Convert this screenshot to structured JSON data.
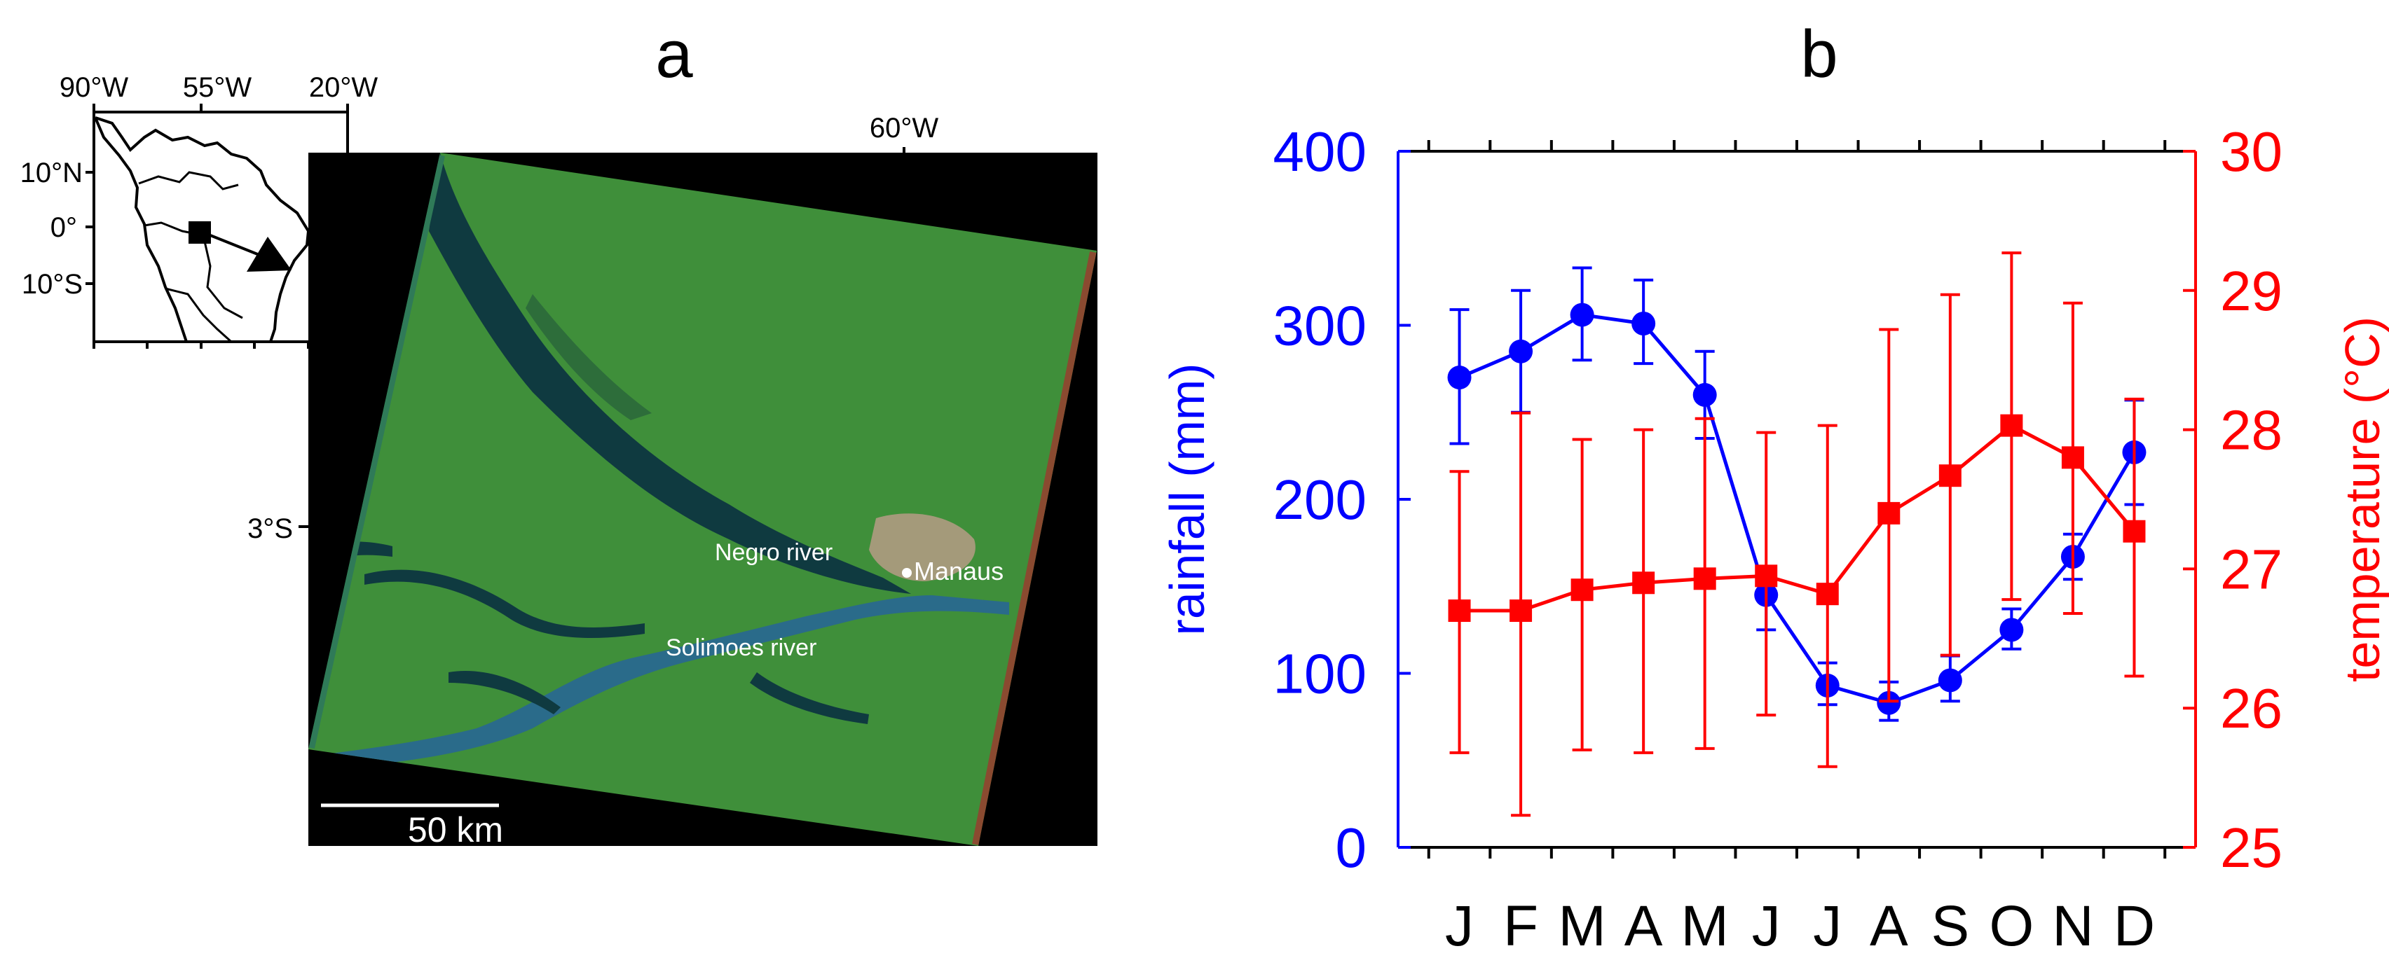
{
  "panel_a": {
    "label": "a",
    "inset": {
      "lon_ticks": [
        "90°W",
        "55°W",
        "20°W"
      ],
      "lat_ticks": [
        "10°N",
        "0°",
        "10°S"
      ]
    },
    "map": {
      "lon_label": "60°W",
      "lat_label": "3°S",
      "place_labels": {
        "negro": "Negro river",
        "manaus": "Manaus",
        "solimoes": "Solimoes river"
      },
      "scale_bar": "50 km",
      "colors": {
        "land": "#3f8f3a",
        "water": "#0f3a40",
        "background": "#000000"
      }
    }
  },
  "panel_b": {
    "label": "b"
  },
  "chart_data": {
    "type": "line",
    "categories": [
      "J",
      "F",
      "M",
      "A",
      "M",
      "J",
      "J",
      "A",
      "S",
      "O",
      "N",
      "D"
    ],
    "y_left": {
      "label": "rainfall (mm)",
      "ylim": [
        0,
        400
      ],
      "ticks": [
        "0",
        "100",
        "200",
        "300",
        "400"
      ],
      "color": "#0000ff"
    },
    "y_right": {
      "label": "temperature (°C)",
      "ylim": [
        25,
        30
      ],
      "ticks": [
        "25",
        "26",
        "27",
        "28",
        "29",
        "30"
      ],
      "color": "#ff0000"
    },
    "grid": false,
    "series": [
      {
        "axis": "left",
        "marker": "circle",
        "color": "#0000ff",
        "values": [
          270,
          285,
          306,
          301,
          260,
          145,
          93,
          83,
          96,
          125,
          167,
          227
        ],
        "err_low": [
          232,
          250,
          280,
          278,
          235,
          125,
          82,
          73,
          84,
          114,
          154,
          197
        ],
        "err_high": [
          309,
          320,
          333,
          326,
          285,
          160,
          106,
          95,
          110,
          137,
          180,
          257
        ]
      },
      {
        "axis": "right",
        "marker": "square",
        "color": "#ff0000",
        "values": [
          26.7,
          26.7,
          26.85,
          26.9,
          26.93,
          26.95,
          26.82,
          27.4,
          27.67,
          28.03,
          27.8,
          27.27
        ],
        "err_low": [
          25.68,
          25.23,
          25.7,
          25.68,
          25.71,
          25.95,
          25.58,
          26.05,
          26.38,
          26.78,
          26.68,
          26.23
        ],
        "err_high": [
          27.7,
          28.12,
          27.93,
          28.0,
          28.08,
          27.98,
          28.03,
          28.72,
          28.97,
          29.27,
          28.91,
          28.22
        ]
      }
    ]
  }
}
